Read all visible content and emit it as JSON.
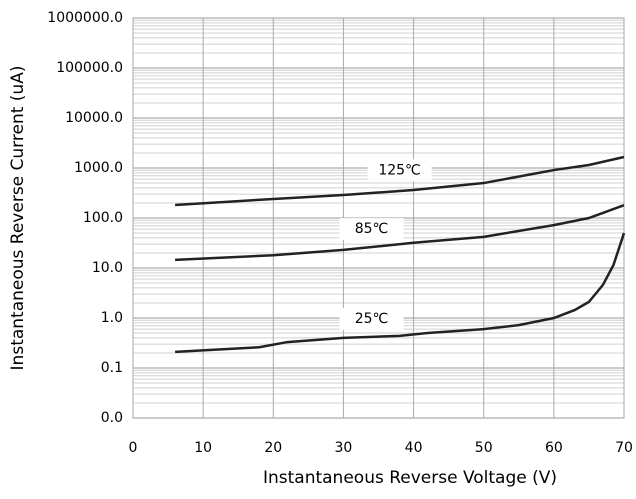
{
  "chart_data": {
    "type": "line",
    "x_label": "Instantaneous Reverse Voltage (V)",
    "y_label": "Instantaneous Reverse Current (uA)",
    "y_scale": "log",
    "grid": true,
    "xlim": [
      0,
      70
    ],
    "xticks": [
      0,
      10,
      20,
      30,
      40,
      50,
      60,
      70
    ],
    "ylim": [
      0.01,
      1000000
    ],
    "yticks": [
      {
        "value": 0.01,
        "label": "0.0"
      },
      0.1,
      {
        "value": 1,
        "label": "1.0"
      },
      {
        "value": 10,
        "label": "10.0"
      },
      {
        "value": 100,
        "label": "100.0"
      },
      {
        "value": 1000,
        "label": "1000.0"
      },
      {
        "value": 10000,
        "label": "10000.0"
      },
      {
        "value": 100000,
        "label": "100000.0"
      },
      {
        "value": 1000000,
        "label": "1000000.0"
      }
    ],
    "series": [
      {
        "name": "125℃",
        "color": "#222222",
        "x": [
          6,
          20,
          30,
          40,
          50,
          60,
          65,
          70
        ],
        "values": [
          182,
          240,
          288,
          363,
          500,
          910,
          1150,
          1660
        ]
      },
      {
        "name": "85℃",
        "color": "#222222",
        "x": [
          6,
          20,
          30,
          40,
          50,
          60,
          65,
          70
        ],
        "values": [
          14.5,
          18,
          23,
          32,
          42,
          72,
          100,
          180
        ]
      },
      {
        "name": "25℃",
        "color": "#222222",
        "x": [
          6,
          18,
          22,
          30,
          38,
          42,
          50,
          55,
          60,
          63,
          65,
          67,
          68.5,
          70
        ],
        "values": [
          0.21,
          0.26,
          0.33,
          0.4,
          0.44,
          0.5,
          0.6,
          0.72,
          1.0,
          1.45,
          2.1,
          4.6,
          11.5,
          50
        ]
      }
    ]
  }
}
